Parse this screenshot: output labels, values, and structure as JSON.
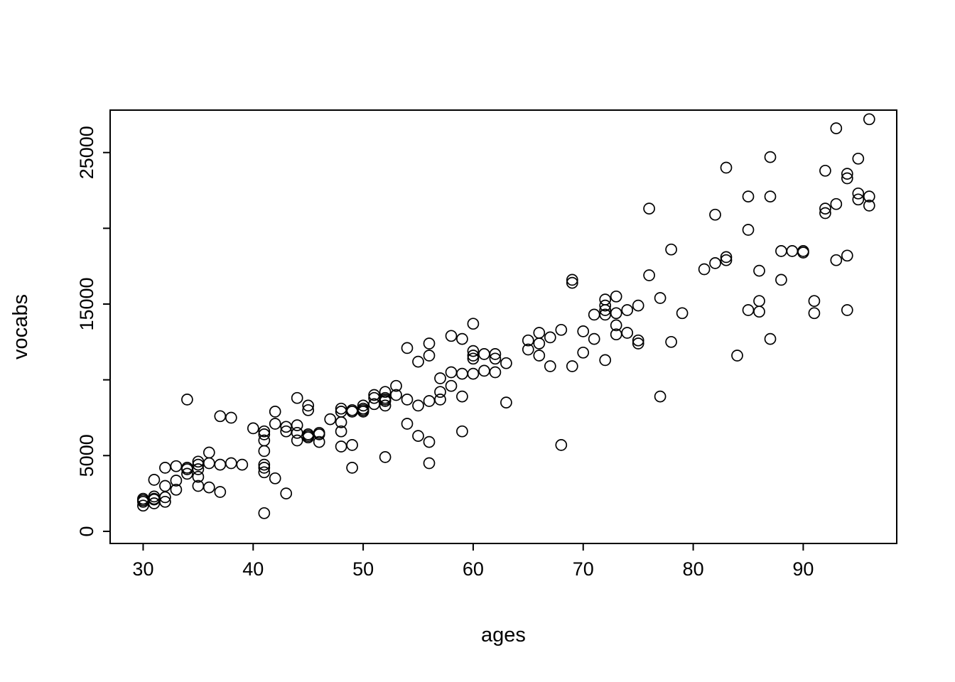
{
  "page": {
    "background": "#ffffff"
  },
  "chart_data": {
    "type": "scatter",
    "title": "",
    "xlabel": "ages",
    "ylabel": "vocabs",
    "xlim": [
      27,
      98.5
    ],
    "ylim": [
      -800,
      27800
    ],
    "x_ticks": [
      30,
      40,
      50,
      60,
      70,
      80,
      90
    ],
    "y_ticks": [
      0,
      5000,
      10000,
      15000,
      20000,
      25000
    ],
    "y_tick_labels": [
      "0",
      "5000",
      "",
      "15000",
      "",
      "25000"
    ],
    "grid": false,
    "legend": "none",
    "marker": "open-circle",
    "marker_color": "#000000",
    "frame": "box",
    "points": [
      [
        30,
        1700
      ],
      [
        30,
        1950
      ],
      [
        30,
        2150
      ],
      [
        30,
        2050
      ],
      [
        31,
        1850
      ],
      [
        31,
        2100
      ],
      [
        31,
        2300
      ],
      [
        31,
        3400
      ],
      [
        31,
        2150
      ],
      [
        32,
        1950
      ],
      [
        32,
        2250
      ],
      [
        32,
        3000
      ],
      [
        32,
        4200
      ],
      [
        33,
        2750
      ],
      [
        33,
        3350
      ],
      [
        33,
        4300
      ],
      [
        34,
        4200
      ],
      [
        34,
        3800
      ],
      [
        34,
        4100
      ],
      [
        34,
        8700
      ],
      [
        35,
        3000
      ],
      [
        35,
        3600
      ],
      [
        35,
        4100
      ],
      [
        35,
        4600
      ],
      [
        35,
        4400
      ],
      [
        36,
        2900
      ],
      [
        36,
        4500
      ],
      [
        36,
        5200
      ],
      [
        37,
        2600
      ],
      [
        37,
        4400
      ],
      [
        37,
        7600
      ],
      [
        38,
        7500
      ],
      [
        38,
        4500
      ],
      [
        39,
        4400
      ],
      [
        40,
        6800
      ],
      [
        41,
        1200
      ],
      [
        41,
        3900
      ],
      [
        41,
        4200
      ],
      [
        41,
        4400
      ],
      [
        41,
        5300
      ],
      [
        41,
        6000
      ],
      [
        41,
        6400
      ],
      [
        41,
        6600
      ],
      [
        42,
        3500
      ],
      [
        42,
        7100
      ],
      [
        42,
        7900
      ],
      [
        43,
        2500
      ],
      [
        43,
        6600
      ],
      [
        43,
        6900
      ],
      [
        44,
        6000
      ],
      [
        44,
        6500
      ],
      [
        44,
        7000
      ],
      [
        44,
        8800
      ],
      [
        45,
        6200
      ],
      [
        45,
        6400
      ],
      [
        45,
        8000
      ],
      [
        45,
        8300
      ],
      [
        45,
        6300
      ],
      [
        46,
        5900
      ],
      [
        46,
        6400
      ],
      [
        46,
        6500
      ],
      [
        47,
        7400
      ],
      [
        48,
        6600
      ],
      [
        48,
        7200
      ],
      [
        48,
        7900
      ],
      [
        48,
        8100
      ],
      [
        48,
        5600
      ],
      [
        49,
        4200
      ],
      [
        49,
        5700
      ],
      [
        49,
        7900
      ],
      [
        49,
        8000
      ],
      [
        50,
        7900
      ],
      [
        50,
        8100
      ],
      [
        50,
        8300
      ],
      [
        50,
        8000
      ],
      [
        51,
        8400
      ],
      [
        51,
        8800
      ],
      [
        51,
        9000
      ],
      [
        52,
        4900
      ],
      [
        52,
        8300
      ],
      [
        52,
        8600
      ],
      [
        52,
        8800
      ],
      [
        52,
        9200
      ],
      [
        52,
        8700
      ],
      [
        53,
        9000
      ],
      [
        53,
        9600
      ],
      [
        54,
        7100
      ],
      [
        54,
        8700
      ],
      [
        54,
        12100
      ],
      [
        55,
        6300
      ],
      [
        55,
        8300
      ],
      [
        55,
        11200
      ],
      [
        56,
        4500
      ],
      [
        56,
        5900
      ],
      [
        56,
        8600
      ],
      [
        56,
        11600
      ],
      [
        56,
        12400
      ],
      [
        57,
        8700
      ],
      [
        57,
        9200
      ],
      [
        57,
        10100
      ],
      [
        58,
        9600
      ],
      [
        58,
        10500
      ],
      [
        58,
        12900
      ],
      [
        59,
        6600
      ],
      [
        59,
        8900
      ],
      [
        59,
        10400
      ],
      [
        59,
        12700
      ],
      [
        60,
        10400
      ],
      [
        60,
        11400
      ],
      [
        60,
        11600
      ],
      [
        60,
        11900
      ],
      [
        60,
        13700
      ],
      [
        61,
        10600
      ],
      [
        61,
        11700
      ],
      [
        62,
        10500
      ],
      [
        62,
        11400
      ],
      [
        62,
        11700
      ],
      [
        63,
        8500
      ],
      [
        63,
        11100
      ],
      [
        65,
        12000
      ],
      [
        65,
        12600
      ],
      [
        66,
        11600
      ],
      [
        66,
        12400
      ],
      [
        66,
        13100
      ],
      [
        67,
        10900
      ],
      [
        67,
        12800
      ],
      [
        68,
        5700
      ],
      [
        68,
        13300
      ],
      [
        69,
        10900
      ],
      [
        69,
        16400
      ],
      [
        69,
        16600
      ],
      [
        70,
        11800
      ],
      [
        70,
        13200
      ],
      [
        71,
        12700
      ],
      [
        71,
        14300
      ],
      [
        72,
        11300
      ],
      [
        72,
        14300
      ],
      [
        72,
        14600
      ],
      [
        72,
        14900
      ],
      [
        72,
        15300
      ],
      [
        73,
        13000
      ],
      [
        73,
        13600
      ],
      [
        73,
        14400
      ],
      [
        73,
        15500
      ],
      [
        74,
        13100
      ],
      [
        74,
        14600
      ],
      [
        75,
        12400
      ],
      [
        75,
        12600
      ],
      [
        75,
        14900
      ],
      [
        76,
        16900
      ],
      [
        76,
        21300
      ],
      [
        77,
        8900
      ],
      [
        77,
        15400
      ],
      [
        78,
        12500
      ],
      [
        78,
        18600
      ],
      [
        79,
        14400
      ],
      [
        81,
        17300
      ],
      [
        82,
        17700
      ],
      [
        82,
        20900
      ],
      [
        83,
        17900
      ],
      [
        83,
        18100
      ],
      [
        83,
        24000
      ],
      [
        84,
        11600
      ],
      [
        85,
        14600
      ],
      [
        85,
        19900
      ],
      [
        85,
        22100
      ],
      [
        86,
        14500
      ],
      [
        86,
        15200
      ],
      [
        86,
        17200
      ],
      [
        87,
        12700
      ],
      [
        87,
        22100
      ],
      [
        87,
        24700
      ],
      [
        88,
        18500
      ],
      [
        88,
        16600
      ],
      [
        89,
        18500
      ],
      [
        90,
        18400
      ],
      [
        90,
        18500
      ],
      [
        91,
        14400
      ],
      [
        91,
        15200
      ],
      [
        92,
        21000
      ],
      [
        92,
        23800
      ],
      [
        92,
        21300
      ],
      [
        93,
        17900
      ],
      [
        93,
        21600
      ],
      [
        93,
        26600
      ],
      [
        94,
        14600
      ],
      [
        94,
        18200
      ],
      [
        94,
        23300
      ],
      [
        94,
        23600
      ],
      [
        95,
        21900
      ],
      [
        95,
        22300
      ],
      [
        95,
        24600
      ],
      [
        96,
        21500
      ],
      [
        96,
        22100
      ],
      [
        96,
        27200
      ]
    ]
  }
}
